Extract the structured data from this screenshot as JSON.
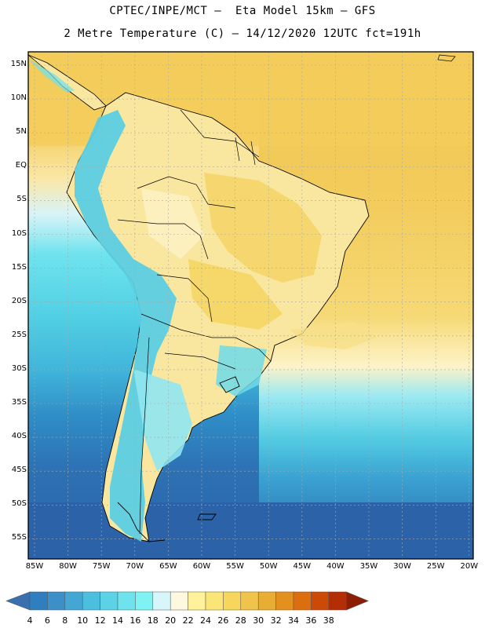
{
  "title_line1": "CPTEC/INPE/MCT –  Eta Model 15km – GFS",
  "title_line2": "2 Metre Temperature (C) – 14/12/2020 12UTC fct=191h",
  "lat_labels": [
    "15N",
    "10N",
    "5N",
    "EQ",
    "5S",
    "10S",
    "15S",
    "20S",
    "25S",
    "30S",
    "35S",
    "40S",
    "45S",
    "50S",
    "55S"
  ],
  "lon_labels": [
    "85W",
    "80W",
    "75W",
    "70W",
    "65W",
    "60W",
    "55W",
    "50W",
    "45W",
    "40W",
    "35W",
    "30W",
    "25W",
    "20W"
  ],
  "colorbar": {
    "labels": [
      "4",
      "6",
      "8",
      "10",
      "12",
      "14",
      "16",
      "18",
      "20",
      "22",
      "24",
      "26",
      "28",
      "30",
      "32",
      "34",
      "36",
      "38"
    ],
    "colors": [
      "#3a6fb0",
      "#2f7fbf",
      "#3c8fc8",
      "#43a6d4",
      "#4dbfde",
      "#5cd2e6",
      "#6ee3ee",
      "#7ff2f4",
      "#d6f6fb",
      "#fff8e0",
      "#fff29a",
      "#fbe577",
      "#f6d65d",
      "#f0c34a",
      "#e8ad33",
      "#e4901f",
      "#dd6e10",
      "#cc4a08",
      "#b42e05",
      "#8c1f03"
    ]
  },
  "colors": {
    "ocean_south": "#2b65aa",
    "ocean_mid": "#4fc6df",
    "ocean_north": "#f3cf5f",
    "land_warm": "#f9e59a",
    "andes": "#5dcfe4",
    "grid": "#b0b0b0"
  }
}
